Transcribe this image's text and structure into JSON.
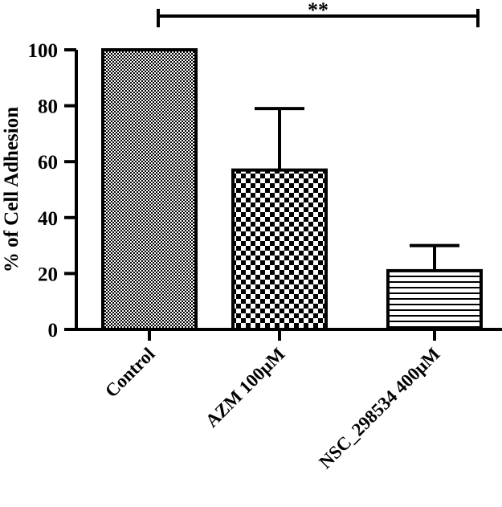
{
  "chart_data": {
    "type": "bar",
    "categories": [
      "Control",
      "AZM 100μM",
      "NSC_298534 400μM"
    ],
    "values": [
      100,
      57,
      21
    ],
    "error_upper": [
      null,
      79,
      30
    ],
    "ylabel": "% of Cell Adhesion",
    "xlabel": "",
    "ylim": [
      0,
      100
    ],
    "yticks": [
      0,
      20,
      40,
      60,
      80,
      100
    ],
    "fills": [
      "fine-checker",
      "coarse-checker",
      "horizontal-lines"
    ],
    "significance": {
      "from": "Control",
      "to": "NSC_298534 400μM",
      "label": "**"
    },
    "grid": false
  }
}
